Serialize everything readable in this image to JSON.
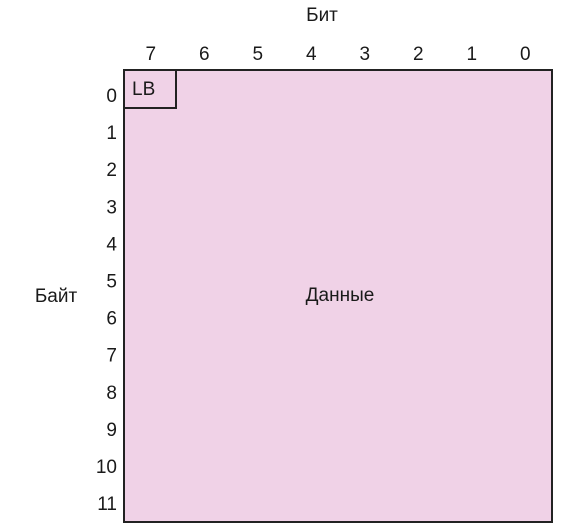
{
  "header": {
    "bit_label": "Бит",
    "byte_label": "Байт"
  },
  "bits": [
    7,
    6,
    5,
    4,
    3,
    2,
    1,
    0
  ],
  "bytes": [
    0,
    1,
    2,
    3,
    4,
    5,
    6,
    7,
    8,
    9,
    10,
    11
  ],
  "cells": {
    "lb": "LB",
    "data": "Данные"
  }
}
